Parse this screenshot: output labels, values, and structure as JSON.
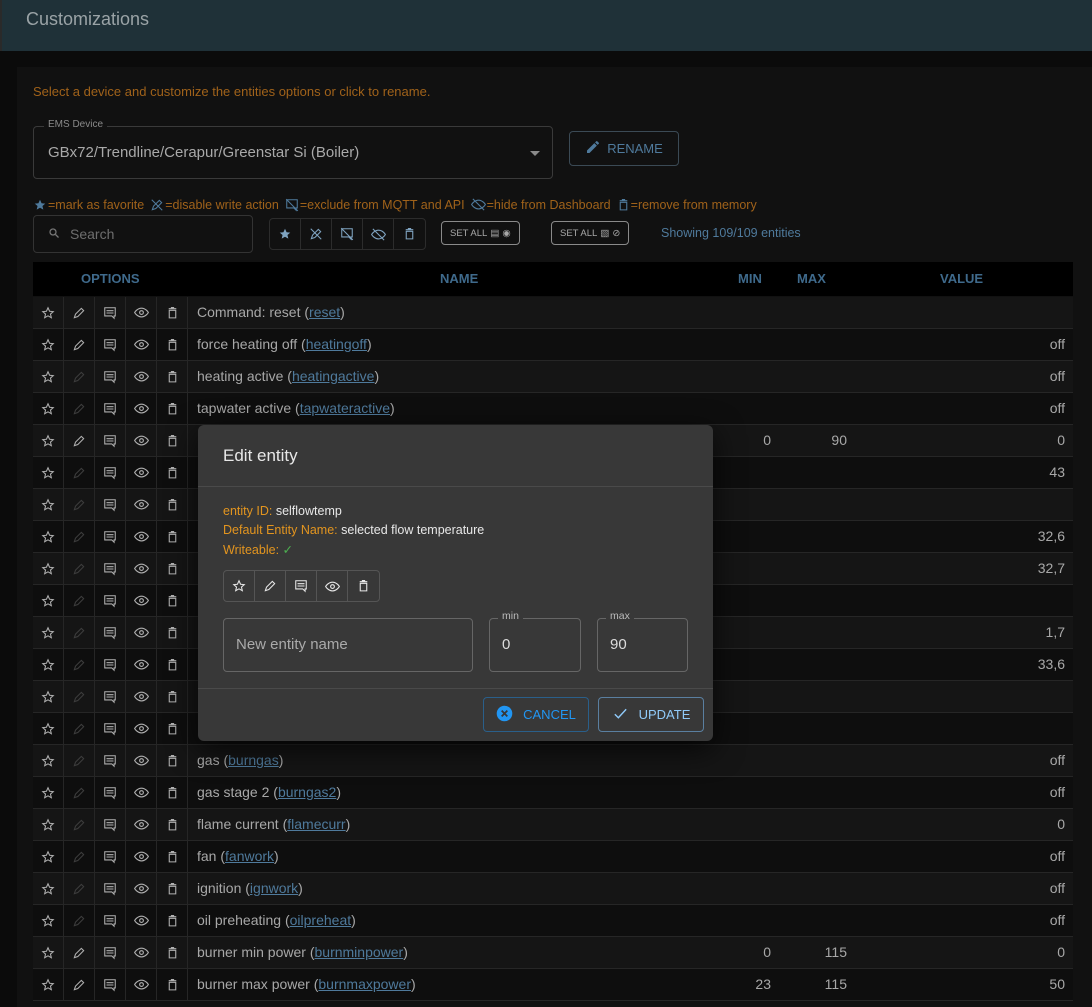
{
  "app": {
    "title": "Customizations"
  },
  "hint": "Select a device and customize the entities options or click to rename.",
  "device_select": {
    "label": "EMS Device",
    "value": "GBx72/Trendline/Cerapur/Greenstar Si (Boiler)"
  },
  "rename_label": "RENAME",
  "legend": [
    {
      "icon": "star-icon",
      "text": "=mark as favorite"
    },
    {
      "icon": "edit-off-icon",
      "text": "=disable write action"
    },
    {
      "icon": "comments-disabled-icon",
      "text": "=exclude from MQTT and API"
    },
    {
      "icon": "visibility-off-icon",
      "text": "=hide from Dashboard"
    },
    {
      "icon": "delete-icon",
      "text": "=remove from memory"
    }
  ],
  "search": {
    "placeholder": "Search"
  },
  "set_all_1": "SET ALL",
  "set_all_2": "SET ALL",
  "showing": "Showing 109/109 entities",
  "columns": {
    "options": "OPTIONS",
    "name": "NAME",
    "min": "MIN",
    "max": "MAX",
    "value": "VALUE"
  },
  "rows": [
    {
      "name": "Command: reset (",
      "id": "reset",
      "min": "",
      "max": "",
      "value": "",
      "writeable": true
    },
    {
      "name": "force heating off (",
      "id": "heatingoff",
      "min": "",
      "max": "",
      "value": "off",
      "writeable": true
    },
    {
      "name": "heating active (",
      "id": "heatingactive",
      "min": "",
      "max": "",
      "value": "off",
      "writeable": false
    },
    {
      "name": "tapwater active (",
      "id": "tapwateractive",
      "min": "",
      "max": "",
      "value": "off",
      "writeable": false
    },
    {
      "name": "",
      "id": "",
      "min": "0",
      "max": "90",
      "value": "0",
      "writeable": true
    },
    {
      "name": "",
      "id": "",
      "min": "",
      "max": "",
      "value": "43",
      "writeable": false
    },
    {
      "name": "",
      "id": "",
      "min": "",
      "max": "",
      "value": "",
      "writeable": false
    },
    {
      "name": "",
      "id": "",
      "min": "",
      "max": "",
      "value": "32,6",
      "writeable": false
    },
    {
      "name": "",
      "id": "",
      "min": "",
      "max": "",
      "value": "32,7",
      "writeable": false
    },
    {
      "name": "",
      "id": "",
      "min": "",
      "max": "",
      "value": "",
      "writeable": false
    },
    {
      "name": "",
      "id": "",
      "min": "",
      "max": "",
      "value": "1,7",
      "writeable": false
    },
    {
      "name": "",
      "id": "",
      "min": "",
      "max": "",
      "value": "33,6",
      "writeable": false
    },
    {
      "name": "",
      "id": "",
      "min": "",
      "max": "",
      "value": "",
      "writeable": false
    },
    {
      "name": "",
      "id": "",
      "min": "",
      "max": "",
      "value": "",
      "writeable": false
    },
    {
      "name": "gas (",
      "id": "burngas",
      "min": "",
      "max": "",
      "value": "off",
      "writeable": false
    },
    {
      "name": "gas stage 2 (",
      "id": "burngas2",
      "min": "",
      "max": "",
      "value": "off",
      "writeable": false
    },
    {
      "name": "flame current (",
      "id": "flamecurr",
      "min": "",
      "max": "",
      "value": "0",
      "writeable": false
    },
    {
      "name": "fan (",
      "id": "fanwork",
      "min": "",
      "max": "",
      "value": "off",
      "writeable": false
    },
    {
      "name": "ignition (",
      "id": "ignwork",
      "min": "",
      "max": "",
      "value": "off",
      "writeable": false
    },
    {
      "name": "oil preheating (",
      "id": "oilpreheat",
      "min": "",
      "max": "",
      "value": "off",
      "writeable": false
    },
    {
      "name": "burner min power (",
      "id": "burnminpower",
      "min": "0",
      "max": "115",
      "value": "0",
      "writeable": true
    },
    {
      "name": "burner max power (",
      "id": "burnmaxpower",
      "min": "23",
      "max": "115",
      "value": "50",
      "writeable": true
    }
  ],
  "dialog": {
    "title": "Edit entity",
    "entity_id_label": "entity ID:",
    "entity_id": "selflowtemp",
    "default_name_label": "Default Entity Name:",
    "default_name": "selected flow temperature",
    "writeable_label": "Writeable:",
    "writeable_mark": "✓",
    "name_placeholder": "New entity name",
    "min_label": "min",
    "min_value": "0",
    "max_label": "max",
    "max_value": "90",
    "cancel": "CANCEL",
    "update": "UPDATE"
  },
  "colors": {
    "accent": "#4f7a9c",
    "warning": "#e3951f",
    "success": "#4caf50",
    "dialog_bg": "#383838"
  }
}
